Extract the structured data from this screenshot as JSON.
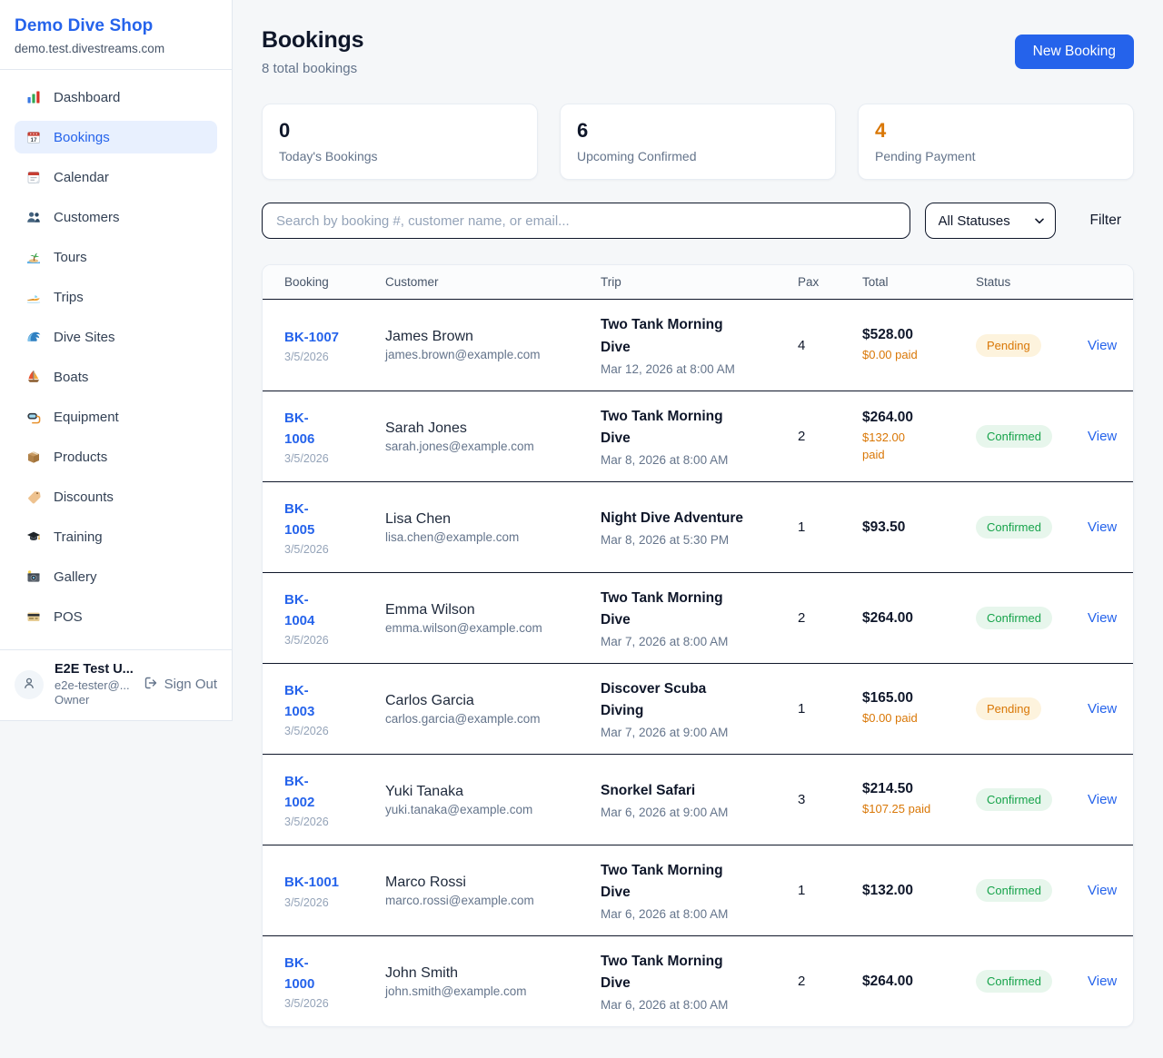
{
  "colors": {
    "accent": "#2563eb",
    "pending": "#d97706",
    "confirmed": "#16a34a",
    "paid": "#d97706"
  },
  "sidebar": {
    "brand": "Demo Dive Shop",
    "domain": "demo.test.divestreams.com",
    "nav": [
      {
        "label": "Dashboard",
        "icon": "bar-chart-icon",
        "active": false
      },
      {
        "label": "Bookings",
        "icon": "calendar-date-icon",
        "active": true
      },
      {
        "label": "Calendar",
        "icon": "tear-off-calendar-icon",
        "active": false
      },
      {
        "label": "Customers",
        "icon": "people-icon",
        "active": false
      },
      {
        "label": "Tours",
        "icon": "desert-island-icon",
        "active": false
      },
      {
        "label": "Trips",
        "icon": "speedboat-icon",
        "active": false
      },
      {
        "label": "Dive Sites",
        "icon": "water-wave-icon",
        "active": false
      },
      {
        "label": "Boats",
        "icon": "sailboat-icon",
        "active": false
      },
      {
        "label": "Equipment",
        "icon": "diving-mask-icon",
        "active": false
      },
      {
        "label": "Products",
        "icon": "package-icon",
        "active": false
      },
      {
        "label": "Discounts",
        "icon": "label-tag-icon",
        "active": false
      },
      {
        "label": "Training",
        "icon": "graduation-cap-icon",
        "active": false
      },
      {
        "label": "Gallery",
        "icon": "camera-flash-icon",
        "active": false
      },
      {
        "label": "POS",
        "icon": "credit-card-icon",
        "active": false
      }
    ],
    "user": {
      "name": "E2E Test U...",
      "email": "e2e-tester@...",
      "role": "Owner",
      "signout_label": "Sign Out",
      "avatar_icon": "person-icon",
      "signout_icon": "sign-out-icon"
    }
  },
  "header": {
    "title": "Bookings",
    "subtitle": "8 total bookings",
    "new_booking_label": "New Booking"
  },
  "stats": [
    {
      "value": "0",
      "label": "Today's Bookings",
      "value_color": "#0f172a"
    },
    {
      "value": "6",
      "label": "Upcoming Confirmed",
      "value_color": "#0f172a"
    },
    {
      "value": "4",
      "label": "Pending Payment",
      "value_color": "#d97706"
    }
  ],
  "filters": {
    "search_placeholder": "Search by booking #, customer name, or email...",
    "status_selected": "All Statuses",
    "status_chevron_icon": "chevron-down-icon",
    "filter_label": "Filter"
  },
  "table": {
    "columns": [
      "Booking",
      "Customer",
      "Trip",
      "Pax",
      "Total",
      "Status"
    ],
    "view_label": "View",
    "rows": [
      {
        "id_lines": [
          "BK-1007"
        ],
        "date": "3/5/2026",
        "customer": "James Brown",
        "email": "james.brown@example.com",
        "trip_lines": [
          "Two Tank Morning",
          "Dive"
        ],
        "datetime": "Mar 12, 2026 at 8:00 AM",
        "pax": "4",
        "total": "$528.00",
        "paid_lines": [
          "$0.00 paid"
        ],
        "status": "Pending"
      },
      {
        "id_lines": [
          "BK-",
          "1006"
        ],
        "date": "3/5/2026",
        "customer": "Sarah Jones",
        "email": "sarah.jones@example.com",
        "trip_lines": [
          "Two Tank Morning",
          "Dive"
        ],
        "datetime": "Mar 8, 2026 at 8:00 AM",
        "pax": "2",
        "total": "$264.00",
        "paid_lines": [
          "$132.00",
          "paid"
        ],
        "status": "Confirmed"
      },
      {
        "id_lines": [
          "BK-",
          "1005"
        ],
        "date": "3/5/2026",
        "customer": "Lisa Chen",
        "email": "lisa.chen@example.com",
        "trip_lines": [
          "Night Dive Adventure"
        ],
        "datetime": "Mar 8, 2026 at 5:30 PM",
        "pax": "1",
        "total": "$93.50",
        "paid_lines": null,
        "status": "Confirmed"
      },
      {
        "id_lines": [
          "BK-",
          "1004"
        ],
        "date": "3/5/2026",
        "customer": "Emma Wilson",
        "email": "emma.wilson@example.com",
        "trip_lines": [
          "Two Tank Morning",
          "Dive"
        ],
        "datetime": "Mar 7, 2026 at 8:00 AM",
        "pax": "2",
        "total": "$264.00",
        "paid_lines": null,
        "status": "Confirmed"
      },
      {
        "id_lines": [
          "BK-",
          "1003"
        ],
        "date": "3/5/2026",
        "customer": "Carlos Garcia",
        "email": "carlos.garcia@example.com",
        "trip_lines": [
          "Discover Scuba",
          "Diving"
        ],
        "datetime": "Mar 7, 2026 at 9:00 AM",
        "pax": "1",
        "total": "$165.00",
        "paid_lines": [
          "$0.00 paid"
        ],
        "status": "Pending"
      },
      {
        "id_lines": [
          "BK-",
          "1002"
        ],
        "date": "3/5/2026",
        "customer": "Yuki Tanaka",
        "email": "yuki.tanaka@example.com",
        "trip_lines": [
          "Snorkel Safari"
        ],
        "datetime": "Mar 6, 2026 at 9:00 AM",
        "pax": "3",
        "total": "$214.50",
        "paid_lines": [
          "$107.25 paid"
        ],
        "status": "Confirmed"
      },
      {
        "id_lines": [
          "BK-1001"
        ],
        "date": "3/5/2026",
        "customer": "Marco Rossi",
        "email": "marco.rossi@example.com",
        "trip_lines": [
          "Two Tank Morning",
          "Dive"
        ],
        "datetime": "Mar 6, 2026 at 8:00 AM",
        "pax": "1",
        "total": "$132.00",
        "paid_lines": null,
        "status": "Confirmed"
      },
      {
        "id_lines": [
          "BK-",
          "1000"
        ],
        "date": "3/5/2026",
        "customer": "John Smith",
        "email": "john.smith@example.com",
        "trip_lines": [
          "Two Tank Morning",
          "Dive"
        ],
        "datetime": "Mar 6, 2026 at 8:00 AM",
        "pax": "2",
        "total": "$264.00",
        "paid_lines": null,
        "status": "Confirmed"
      }
    ]
  }
}
